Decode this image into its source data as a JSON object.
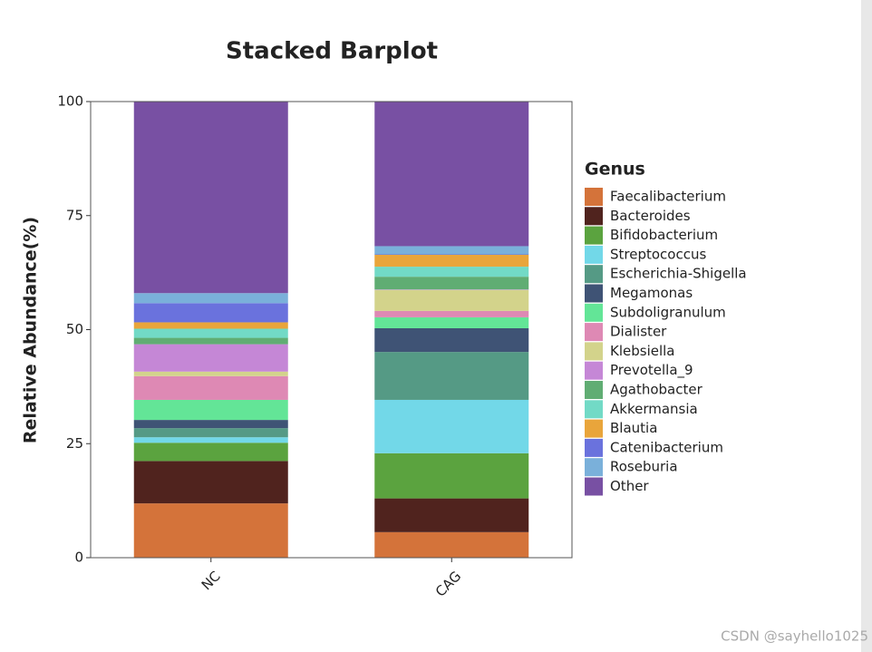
{
  "chart_data": {
    "type": "bar",
    "stacked": true,
    "title": "Stacked Barplot",
    "y_label": "Relative Abundance(%)",
    "legend_title": "Genus",
    "legend_position": "right",
    "categories": [
      "NC",
      "CAG"
    ],
    "ylim": [
      0,
      100
    ],
    "yticks": [
      0,
      25,
      50,
      75,
      100
    ],
    "series": [
      {
        "name": "Faecalibacterium",
        "color": "#d4733a",
        "values": [
          11.9,
          5.6
        ]
      },
      {
        "name": "Bacteroides",
        "color": "#50231e",
        "values": [
          9.3,
          7.4
        ]
      },
      {
        "name": "Bifidobacterium",
        "color": "#5ba33f",
        "values": [
          4.0,
          9.9
        ]
      },
      {
        "name": "Streptococcus",
        "color": "#72d8e8",
        "values": [
          1.2,
          11.7
        ]
      },
      {
        "name": "Escherichia-Shigella",
        "color": "#559a85",
        "values": [
          2.0,
          10.5
        ]
      },
      {
        "name": "Megamonas",
        "color": "#3f5375",
        "values": [
          1.8,
          5.2
        ]
      },
      {
        "name": "Subdoligranulum",
        "color": "#63e597",
        "values": [
          4.4,
          2.4
        ]
      },
      {
        "name": "Dialister",
        "color": "#de89b4",
        "values": [
          5.2,
          1.4
        ]
      },
      {
        "name": "Klebsiella",
        "color": "#d3d38b",
        "values": [
          1.0,
          4.6
        ]
      },
      {
        "name": "Prevotella_9",
        "color": "#c587d6",
        "values": [
          6.0,
          0.1
        ]
      },
      {
        "name": "Agathobacter",
        "color": "#60ad73",
        "values": [
          1.4,
          2.8
        ]
      },
      {
        "name": "Akkermansia",
        "color": "#72dac6",
        "values": [
          2.0,
          2.2
        ]
      },
      {
        "name": "Blautia",
        "color": "#e9a53b",
        "values": [
          1.4,
          2.6
        ]
      },
      {
        "name": "Catenibacterium",
        "color": "#6a72dd",
        "values": [
          4.2,
          0.1
        ]
      },
      {
        "name": "Roseburia",
        "color": "#7ab0da",
        "values": [
          2.2,
          1.8
        ]
      },
      {
        "name": "Other",
        "color": "#7850a3",
        "values": [
          42.0,
          31.7
        ]
      }
    ]
  },
  "watermark": "CSDN @sayhello1025"
}
